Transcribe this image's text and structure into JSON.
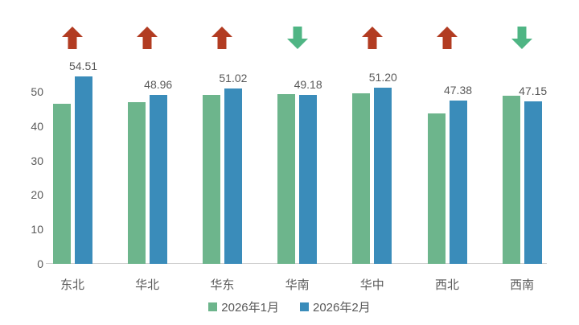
{
  "chart_data": {
    "type": "bar",
    "title": "",
    "categories": [
      "东北",
      "华北",
      "华东",
      "华南",
      "华中",
      "西北",
      "西南"
    ],
    "series": [
      {
        "name": "2026年1月",
        "color": "#6db58c",
        "values": [
          46.5,
          46.9,
          49.0,
          49.3,
          49.6,
          43.7,
          48.8
        ]
      },
      {
        "name": "2026年2月",
        "color": "#3a8cba",
        "values": [
          54.51,
          48.96,
          51.02,
          49.18,
          51.2,
          47.38,
          47.15
        ]
      }
    ],
    "value_labels": [
      "54.51",
      "48.96",
      "51.02",
      "49.18",
      "51.20",
      "47.38",
      "47.15"
    ],
    "labeled_series": "2026年2月",
    "trend_arrows": [
      "up",
      "up",
      "up",
      "down",
      "up",
      "up",
      "down"
    ],
    "arrow_colors": {
      "up": "#b23c22",
      "down": "#4fb584"
    },
    "yticks": [
      0,
      10,
      20,
      30,
      40,
      50
    ],
    "ylim": [
      0,
      57
    ],
    "grid": false,
    "legend_position": "bottom-center",
    "axis_color": "#cfcfcf",
    "text_color": "#595959"
  }
}
